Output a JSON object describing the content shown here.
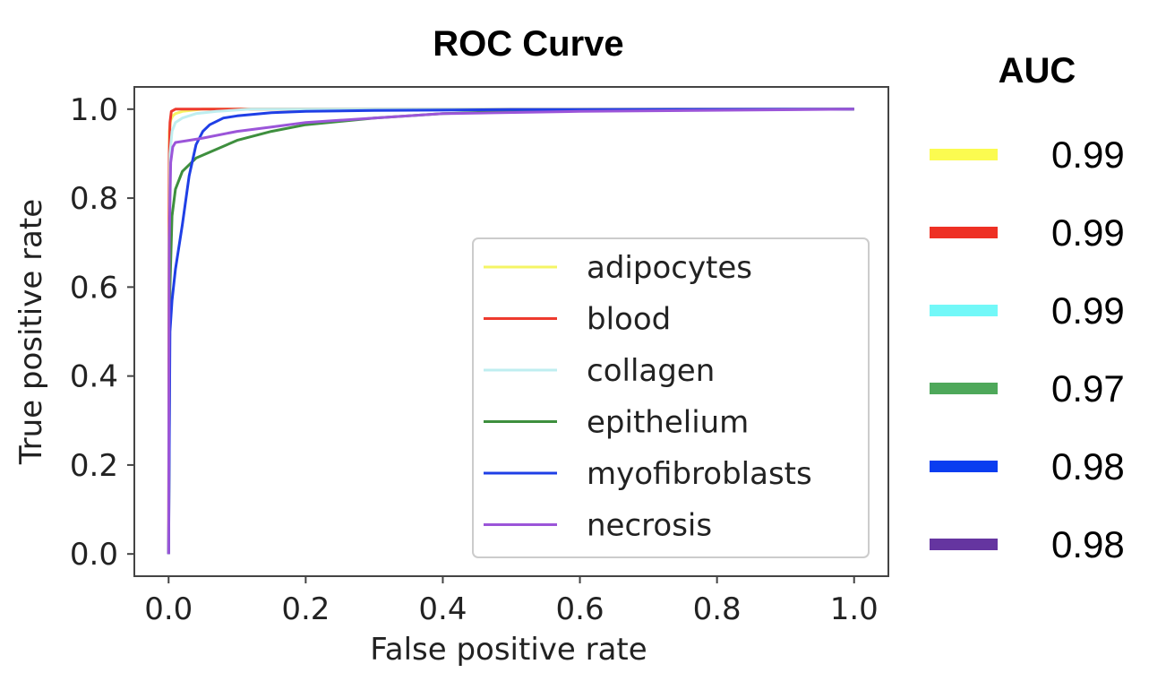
{
  "chart_data": {
    "type": "line",
    "title": "ROC Curve",
    "xlabel": "False positive rate",
    "ylabel": "True positive rate",
    "xlim": [
      -0.05,
      1.05
    ],
    "ylim": [
      -0.05,
      1.05
    ],
    "xticks": [
      0.0,
      0.2,
      0.4,
      0.6,
      0.8,
      1.0
    ],
    "yticks": [
      0.0,
      0.2,
      0.4,
      0.6,
      0.8,
      1.0
    ],
    "xtick_labels": [
      "0.0",
      "0.2",
      "0.4",
      "0.6",
      "0.8",
      "1.0"
    ],
    "ytick_labels": [
      "0.0",
      "0.2",
      "0.4",
      "0.6",
      "0.8",
      "1.0"
    ],
    "grid": false,
    "legend_position": "center-right",
    "series": [
      {
        "name": "adipocytes",
        "color": "#f5f565",
        "x": [
          0,
          0.001,
          0.003,
          0.006,
          0.01,
          0.02,
          0.05,
          1.0
        ],
        "y": [
          0,
          0.95,
          0.975,
          0.985,
          0.99,
          0.995,
          1.0,
          1.0
        ]
      },
      {
        "name": "blood",
        "color": "#ee3a2e",
        "x": [
          0,
          0.001,
          0.002,
          0.004,
          0.01,
          1.0
        ],
        "y": [
          0,
          0.9,
          0.97,
          0.995,
          1.0,
          1.0
        ]
      },
      {
        "name": "collagen",
        "color": "#bfeef0",
        "x": [
          0,
          0.002,
          0.005,
          0.01,
          0.02,
          0.04,
          0.07,
          0.12,
          1.0
        ],
        "y": [
          0,
          0.9,
          0.95,
          0.97,
          0.98,
          0.99,
          0.995,
          1.0,
          1.0
        ]
      },
      {
        "name": "epithelium",
        "color": "#3e8f3e",
        "x": [
          0,
          0.002,
          0.005,
          0.01,
          0.02,
          0.04,
          0.07,
          0.1,
          0.15,
          0.2,
          0.3,
          0.4,
          0.5,
          0.6,
          0.8,
          1.0
        ],
        "y": [
          0,
          0.6,
          0.76,
          0.82,
          0.86,
          0.89,
          0.91,
          0.93,
          0.95,
          0.965,
          0.98,
          0.99,
          0.995,
          0.997,
          0.999,
          1.0
        ]
      },
      {
        "name": "myofibroblasts",
        "color": "#1f3fe6",
        "x": [
          0,
          0.002,
          0.005,
          0.01,
          0.02,
          0.03,
          0.04,
          0.05,
          0.06,
          0.08,
          0.1,
          0.15,
          0.2,
          0.3,
          0.5,
          1.0
        ],
        "y": [
          0,
          0.5,
          0.57,
          0.64,
          0.74,
          0.85,
          0.92,
          0.95,
          0.965,
          0.98,
          0.985,
          0.992,
          0.995,
          0.997,
          0.999,
          1.0
        ]
      },
      {
        "name": "necrosis",
        "color": "#9b55d9",
        "x": [
          0,
          0.001,
          0.003,
          0.006,
          0.01,
          0.03,
          0.05,
          0.1,
          0.15,
          0.2,
          0.3,
          0.4,
          0.6,
          1.0
        ],
        "y": [
          0,
          0.7,
          0.88,
          0.915,
          0.925,
          0.93,
          0.935,
          0.95,
          0.96,
          0.97,
          0.98,
          0.99,
          0.995,
          1.0
        ]
      }
    ],
    "auc_panel": {
      "heading": "AUC",
      "entries": [
        {
          "color": "#fbfb50",
          "value": "0.99"
        },
        {
          "color": "#ee3024",
          "value": "0.99"
        },
        {
          "color": "#72f8f8",
          "value": "0.99"
        },
        {
          "color": "#4ea85a",
          "value": "0.97"
        },
        {
          "color": "#0a3df0",
          "value": "0.98"
        },
        {
          "color": "#6535a0",
          "value": "0.98"
        }
      ]
    }
  }
}
